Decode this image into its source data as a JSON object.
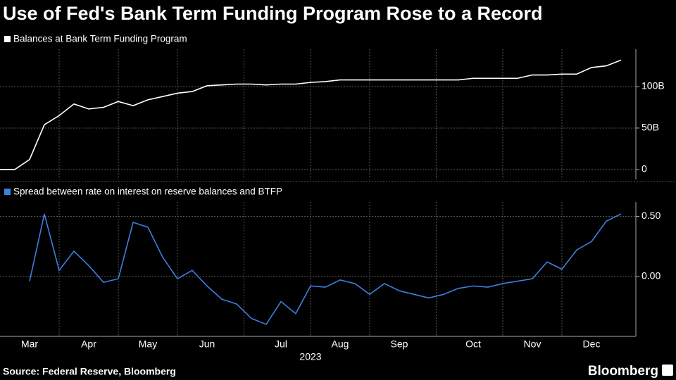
{
  "title": "Use of Fed's Bank Term Funding Program Rose to a Record",
  "source": "Source: Federal Reserve, Bloomberg",
  "logo": "Bloomberg",
  "chart_data": [
    {
      "type": "line",
      "series": [
        {
          "name": "Balances at Bank Term Funding Program",
          "color": "#ffffff",
          "values": [
            0,
            0,
            12,
            54,
            65,
            79,
            73,
            75,
            82,
            77,
            84,
            88,
            92,
            94,
            101,
            102,
            103,
            103,
            102,
            103,
            103,
            105,
            106,
            108,
            108,
            108,
            108,
            108,
            108,
            108,
            108,
            108,
            110,
            110,
            110,
            110,
            114,
            114,
            115,
            115,
            123,
            125,
            132
          ]
        }
      ],
      "ylim": [
        -12,
        145
      ],
      "yticks": [
        0,
        {
          "value": 50,
          "label": "50B"
        },
        {
          "value": 100,
          "label": "100B"
        }
      ],
      "grid": true
    },
    {
      "type": "line",
      "series": [
        {
          "name": "Spread between rate on interest on reserve balances and BTFP",
          "color": "#3d7fe0",
          "values": [
            null,
            null,
            -0.04,
            0.52,
            0.05,
            0.21,
            0.09,
            -0.05,
            -0.02,
            0.45,
            0.41,
            0.16,
            -0.02,
            0.05,
            -0.08,
            -0.19,
            -0.23,
            -0.35,
            -0.4,
            -0.21,
            -0.31,
            -0.08,
            -0.09,
            -0.03,
            -0.06,
            -0.15,
            -0.06,
            -0.12,
            -0.15,
            -0.18,
            -0.15,
            -0.1,
            -0.08,
            -0.09,
            -0.06,
            -0.04,
            -0.02,
            0.12,
            0.06,
            0.22,
            0.29,
            0.46,
            0.52
          ]
        }
      ],
      "categories": [
        null,
        null,
        "Mar",
        null,
        null,
        null,
        "Apr",
        null,
        null,
        null,
        "May",
        null,
        null,
        null,
        "Jun",
        null,
        null,
        null,
        null,
        "Jul",
        null,
        null,
        null,
        "Aug",
        null,
        null,
        null,
        "Sep",
        null,
        null,
        null,
        null,
        "Oct",
        null,
        null,
        null,
        "Nov",
        null,
        null,
        null,
        "Dec",
        null,
        null
      ],
      "x_label": "2023",
      "ylim": [
        -0.5,
        0.62
      ],
      "yticks": [
        {
          "value": 0.5,
          "label": "0.50"
        },
        {
          "value": 0,
          "label": "0.00"
        }
      ],
      "grid": true
    }
  ]
}
